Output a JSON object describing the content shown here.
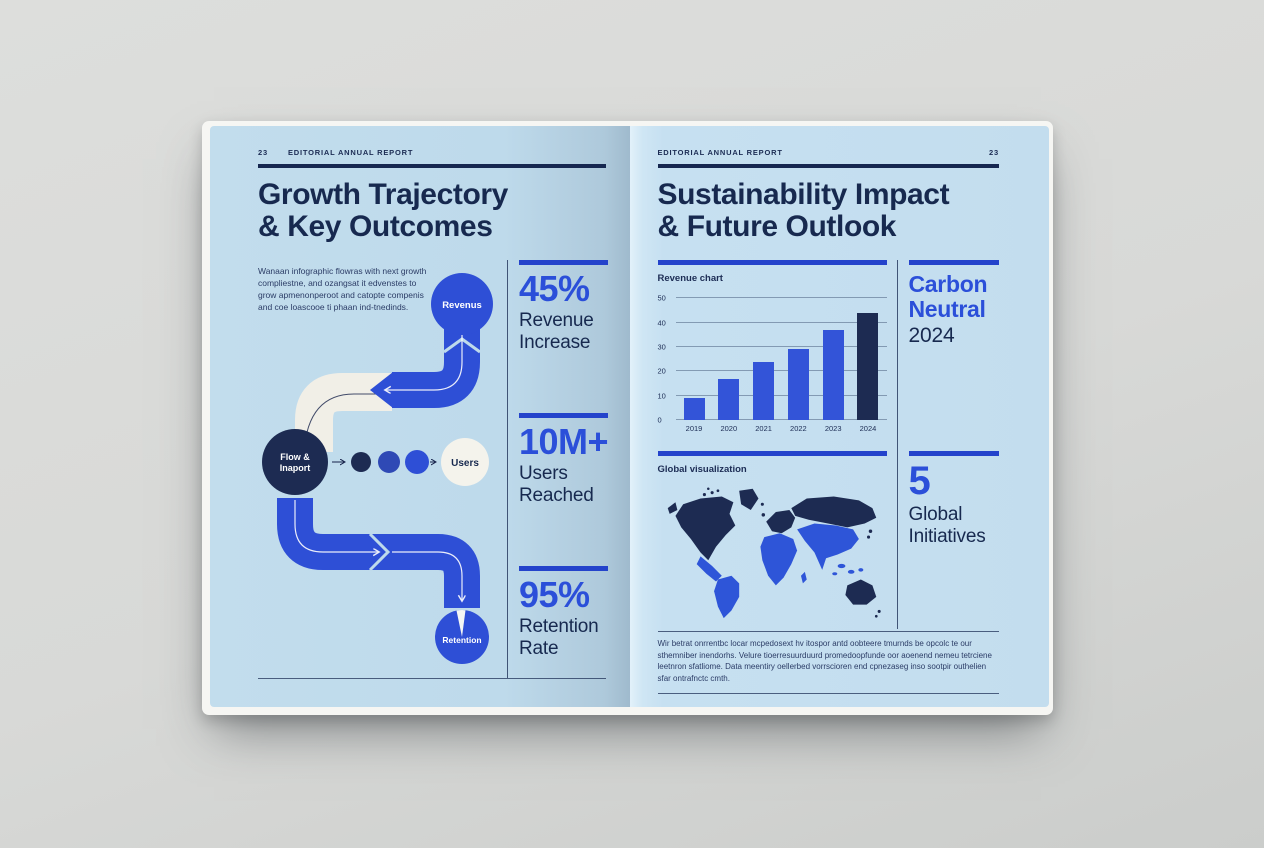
{
  "backdrop_color": "#d8d9d7",
  "page_color": "#c3ddee",
  "colors": {
    "navy": "#17294f",
    "accent_blue": "#2b4fd9",
    "bar_blue": "#3354d8",
    "pipe_blue": "#2e4fd6",
    "pipe_cream": "#f1efe7",
    "dot_mid_blue": "#2f49b5"
  },
  "left_page": {
    "page_number": "23",
    "header": "EDITORIAL ANNUAL REPORT",
    "title_line1": "Growth Trajectory",
    "title_line2": "& Key Outcomes",
    "intro": "Wanaan infographic flowras with next growth compliestne, and ozangsat it edvenstes to grow apmenonperoot and catopte compenis and coe loascooe ti phaan ind-tnedinds.",
    "flow": {
      "node_revenue": "Revenus",
      "node_flow_line1": "Flow &",
      "node_flow_line2": "Inaport",
      "node_users": "Users",
      "node_retention": "Retention"
    },
    "stats": [
      {
        "value": "45%",
        "label": "Revenue Increase"
      },
      {
        "value": "10M+",
        "label": "Users Reached"
      },
      {
        "value": "95%",
        "label": "Retention Rate"
      }
    ]
  },
  "right_page": {
    "page_number": "23",
    "header": "EDITORIAL ANNUAL REPORT",
    "title_line1": "Sustainability Impact",
    "title_line2": "& Future Outlook",
    "chart_label": "Revenue chart",
    "map_label": "Global visualization",
    "carbon": {
      "line1": "Carbon",
      "line2": "Neutral",
      "year": "2024"
    },
    "initiatives": {
      "value": "5",
      "label": "Global Initiatives"
    },
    "footer_text": "Wir betrat onrrentbc locar mcpedosext hv itospor antd oobteere tmurnds be opcolc te our sthemniber inendorhs. Velure tioerresuurduurd promedoopfunde oor aoenend nemeu tetrciene leetnron sfatliome. Data meentiry oellerbed vorrscioren end cpnezaseg inso sootpir outhelien sfar ontrafnctc cmth."
  },
  "chart_data": {
    "type": "bar",
    "title": "Revenue chart",
    "categories": [
      "2019",
      "2020",
      "2021",
      "2022",
      "2023",
      "2024"
    ],
    "values": [
      9,
      17,
      24,
      29,
      37,
      44
    ],
    "bar_colors": [
      "#3354d8",
      "#3354d8",
      "#3354d8",
      "#3354d8",
      "#3354d8",
      "#1d2b52"
    ],
    "xlabel": "",
    "ylabel": "",
    "ylim": [
      0,
      50
    ],
    "yticks": [
      0,
      10,
      20,
      30,
      40,
      50
    ],
    "grid": true,
    "legend": false
  }
}
